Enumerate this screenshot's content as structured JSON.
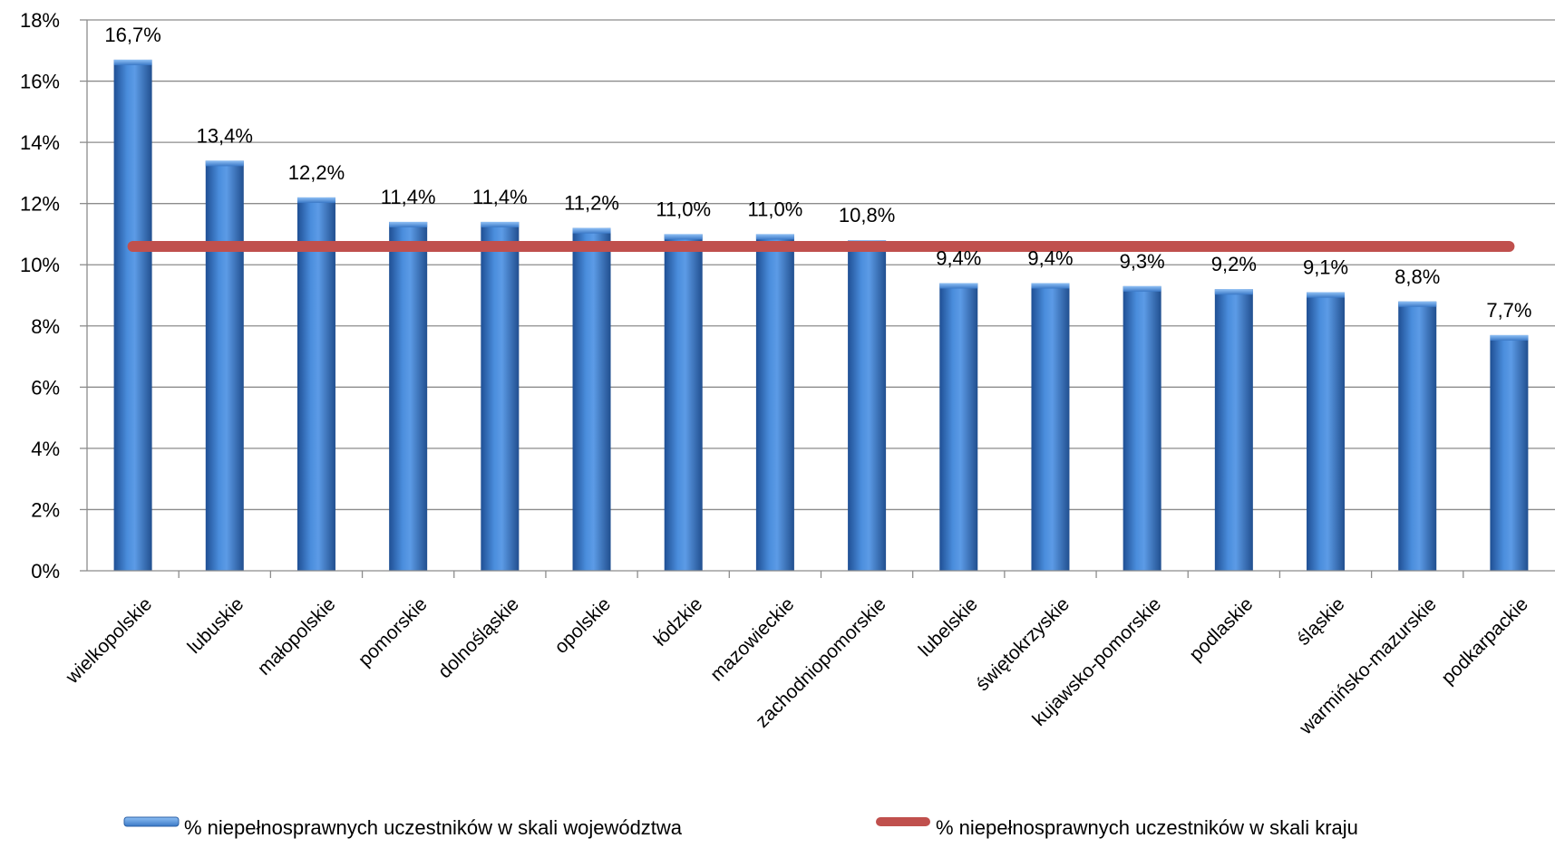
{
  "chart_data": {
    "type": "bar",
    "categories": [
      "wielkopolskie",
      "lubuskie",
      "małopolskie",
      "pomorskie",
      "dolnośląskie",
      "opolskie",
      "łódzkie",
      "mazowieckie",
      "zachodniopomorskie",
      "lubelskie",
      "świętokrzyskie",
      "kujawsko-pomorskie",
      "podlaskie",
      "śląskie",
      "warmińsko-mazurskie",
      "podkarpackie"
    ],
    "series": [
      {
        "name": "% niepełnosprawnych uczestników w skali województwa",
        "type": "bar",
        "values": [
          16.7,
          13.4,
          12.2,
          11.4,
          11.4,
          11.2,
          11.0,
          11.0,
          10.8,
          9.4,
          9.4,
          9.3,
          9.2,
          9.1,
          8.8,
          7.7
        ],
        "labels": [
          "16,7%",
          "13,4%",
          "12,2%",
          "11,4%",
          "11,4%",
          "11,2%",
          "11,0%",
          "11,0%",
          "10,8%",
          "9,4%",
          "9,4%",
          "9,3%",
          "9,2%",
          "9,1%",
          "8,8%",
          "7,7%"
        ],
        "color": "#3a78c6"
      },
      {
        "name": "% niepełnosprawnych uczestników w skali kraju",
        "type": "line",
        "value": 10.6,
        "color": "#c0504d"
      }
    ],
    "yticks": [
      "0%",
      "2%",
      "4%",
      "6%",
      "8%",
      "10%",
      "12%",
      "14%",
      "16%",
      "18%"
    ],
    "ylim": [
      0,
      18
    ],
    "grid": true,
    "legend": "bottom"
  }
}
